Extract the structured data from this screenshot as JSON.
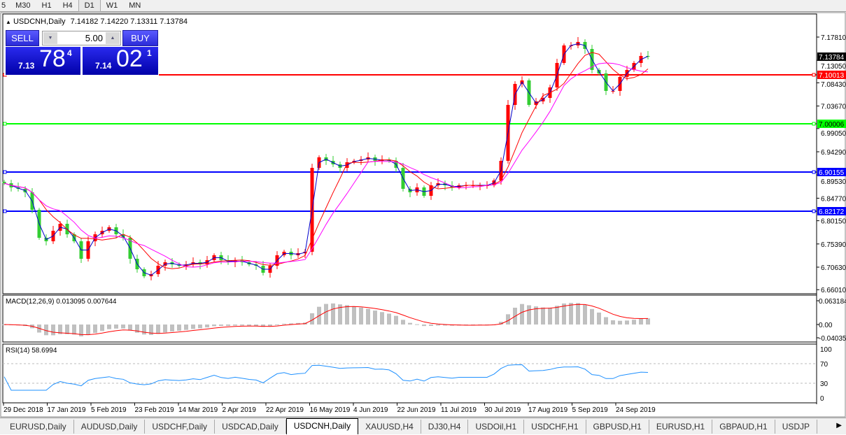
{
  "timeframes": [
    "5",
    "M30",
    "H1",
    "H4",
    "D1",
    "W1",
    "MN"
  ],
  "active_timeframe": "D1",
  "chart_header": {
    "arrow": "▲",
    "symbol": "USDCNH,Daily",
    "ohlc": "7.14182 7.14220 7.13311 7.13784"
  },
  "trade_panel": {
    "sell_label": "SELL",
    "buy_label": "BUY",
    "lot": "5.00",
    "sell_price": {
      "prefix": "7.13",
      "big": "78",
      "sup": "4"
    },
    "buy_price": {
      "prefix": "7.14",
      "big": "02",
      "sup": "1"
    }
  },
  "colors": {
    "bull": "#ff0000",
    "bear": "#32cd32",
    "ma_fast": "#0000cc",
    "ma_mid": "#ff0000",
    "ma_slow": "#ff00ff",
    "macd_hist": "#c0c0c0",
    "macd_signal": "#ff0000",
    "rsi": "#1e90ff"
  },
  "chart_data": {
    "type": "candlestick",
    "symbol": "USDCNH",
    "timeframe": "Daily",
    "closes": [
      6.8784,
      6.8698,
      6.8669,
      6.8598,
      6.8239,
      6.7665,
      6.7594,
      6.7809,
      6.7952,
      6.7737,
      6.7594,
      6.7235,
      6.7594,
      6.7737,
      6.7809,
      6.7881,
      6.7737,
      6.7665,
      6.7235,
      6.702,
      6.6877,
      6.692,
      6.7092,
      6.7164,
      6.712,
      6.7092,
      6.712,
      6.7164,
      6.712,
      6.7207,
      6.7307,
      6.7207,
      6.7164,
      6.7207,
      6.7164,
      6.712,
      6.7092,
      6.6948,
      6.7092,
      6.7307,
      6.7379,
      6.7307,
      6.735,
      6.7379,
      6.9099,
      6.9315,
      6.9243,
      6.9171,
      6.9099,
      6.9214,
      6.9243,
      6.9271,
      6.9315,
      6.9243,
      6.9271,
      6.9243,
      6.9099,
      6.8669,
      6.8598,
      6.8698,
      6.8526,
      6.8741,
      6.8784,
      6.8741,
      6.8698,
      6.8741,
      6.8741,
      6.8741,
      6.8741,
      6.8741,
      6.8841,
      6.9243,
      7.039,
      7.082,
      7.0892,
      7.039,
      7.0462,
      7.0533,
      7.0749,
      7.125,
      7.1609,
      7.1609,
      7.1681,
      7.1537,
      7.1107,
      7.1035,
      7.0677,
      7.0677,
      7.0964,
      7.1107,
      7.125,
      7.1394,
      7.13784
    ],
    "price_ticks": [
      "7.17810",
      "7.13050",
      "7.08430",
      "7.03670",
      "6.99050",
      "6.94290",
      "6.89530",
      "6.84770",
      "6.80150",
      "6.75390",
      "6.70630",
      "6.66010"
    ],
    "price_range": [
      6.6601,
      7.196
    ],
    "current_price": "7.13784",
    "levels": [
      {
        "value": "7.10013",
        "color": "#ff0000"
      },
      {
        "value": "7.00006",
        "color": "#00ff00"
      },
      {
        "value": "6.90155",
        "color": "#0000ff"
      },
      {
        "value": "6.82172",
        "color": "#0000ff"
      }
    ],
    "date_labels": [
      "29 Dec 2018",
      "17 Jan 2019",
      "5 Feb 2019",
      "23 Feb 2019",
      "14 Mar 2019",
      "2 Apr 2019",
      "22 Apr 2019",
      "16 May 2019",
      "4 Jun 2019",
      "22 Jun 2019",
      "11 Jul 2019",
      "30 Jul 2019",
      "17 Aug 2019",
      "5 Sep 2019",
      "24 Sep 2019"
    ],
    "macd": {
      "label": "MACD(12,26,9) 0.013095 0.007644",
      "ticks": [
        "0.063184",
        "0.00",
        "-0.040355"
      ],
      "range": [
        -0.040355,
        0.063184
      ]
    },
    "rsi": {
      "label": "RSI(14) 58.6994",
      "ticks": [
        "100",
        "70",
        "30",
        "0"
      ],
      "levels": [
        70,
        30
      ]
    }
  },
  "tabs": [
    "EURUSD,Daily",
    "AUDUSD,Daily",
    "USDCHF,Daily",
    "USDCAD,Daily",
    "USDCNH,Daily",
    "XAUUSD,H4",
    "DJ30,H4",
    "USDOil,H1",
    "USDCHF,H1",
    "GBPUSD,H1",
    "EURUSD,H1",
    "GBPAUD,H1",
    "USDJP"
  ],
  "active_tab": "USDCNH,Daily"
}
